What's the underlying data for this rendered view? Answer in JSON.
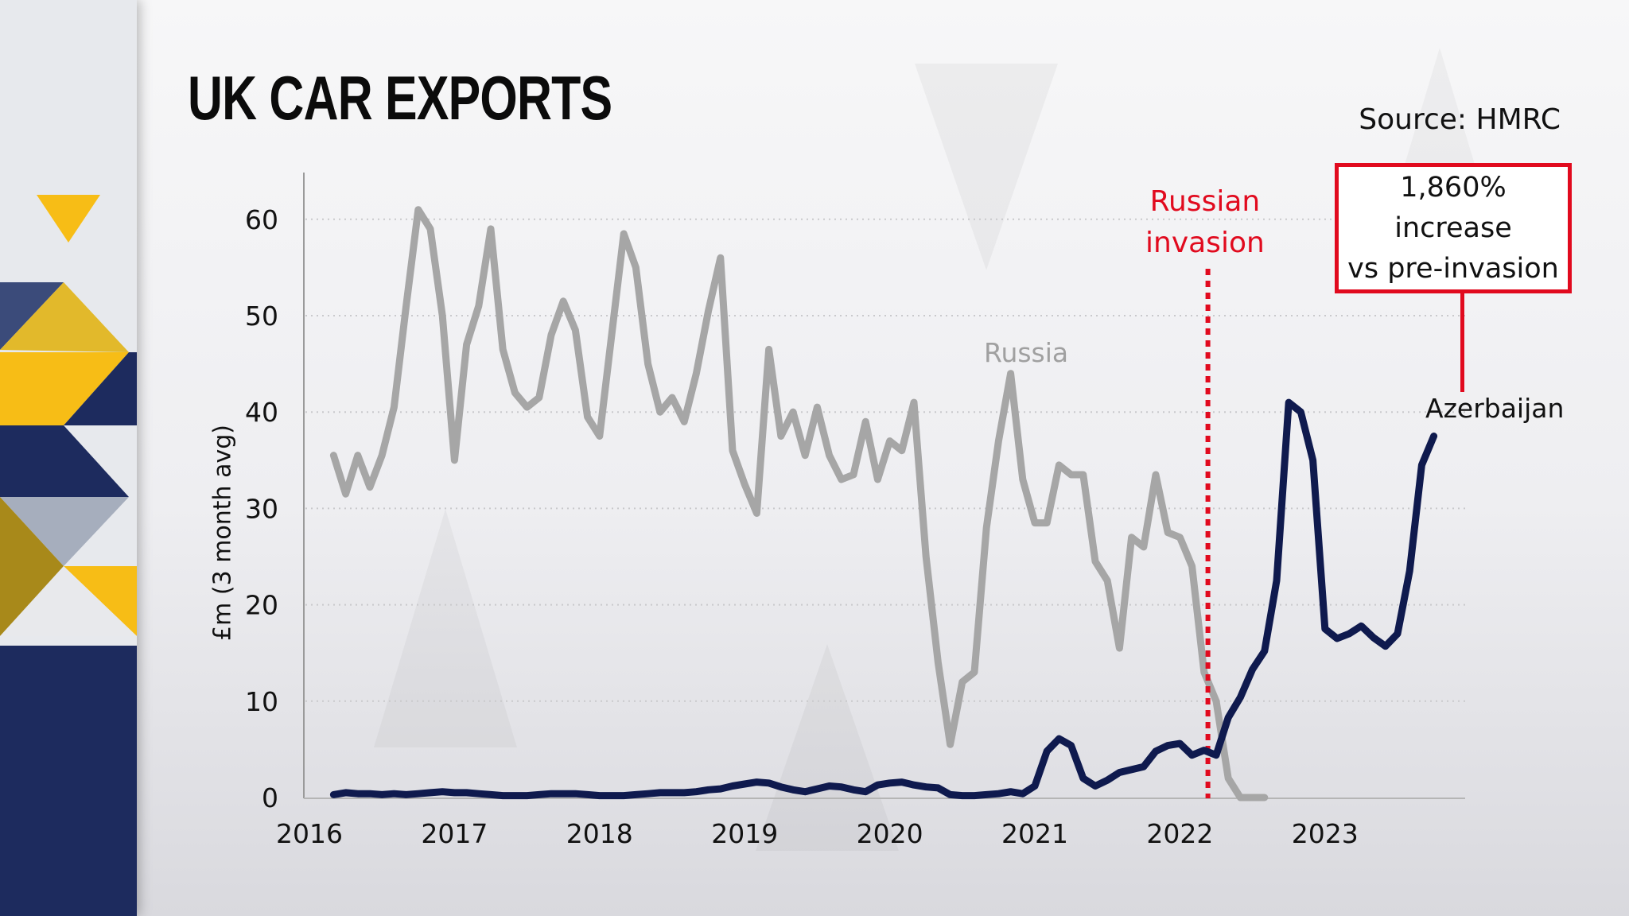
{
  "header": {
    "title": "UK CAR EXPORTS",
    "source": "Source: HMRC"
  },
  "annotations": {
    "invasion_line1": "Russian",
    "invasion_line2": "invasion",
    "callout_line1": "1,860%",
    "callout_line2": "increase",
    "callout_line3": "vs pre-invasion",
    "russia_label": "Russia",
    "azerbaijan_label": "Azerbaijan"
  },
  "colors": {
    "russia": "#a6a6a6",
    "azerbaijan": "#0f1a4e",
    "invasion": "#e10a1e",
    "accent_yellow": "#f7bd16",
    "accent_navy": "#1d2b5e"
  },
  "chart_data": {
    "type": "line",
    "title": "UK CAR EXPORTS",
    "subtitle": "Source: HMRC",
    "xlabel": "",
    "ylabel": "£m (3 month avg)",
    "ylim": [
      0,
      65
    ],
    "yticks": [
      0,
      10,
      20,
      30,
      40,
      50,
      60
    ],
    "xticks": [
      "2016",
      "2017",
      "2018",
      "2019",
      "2020",
      "2021",
      "2022",
      "2023"
    ],
    "grid": "horizontal dotted",
    "legend": "inline labels",
    "x_start": "2016-03",
    "x_step": "month",
    "event_marker": {
      "label": "Russian invasion",
      "x": "2022-02"
    },
    "callout": {
      "text": "1,860% increase vs pre-invasion",
      "series": "Azerbaijan"
    },
    "series": [
      {
        "name": "Russia",
        "values": [
          35.5,
          31.5,
          35.5,
          32.2,
          35.5,
          40.5,
          51,
          61,
          59,
          50,
          35,
          47,
          51,
          59,
          46.5,
          42,
          40.5,
          41.5,
          48,
          51.5,
          48.5,
          39.5,
          37.5,
          48,
          58.5,
          55,
          45,
          40,
          41.5,
          39,
          44,
          50.5,
          56,
          36,
          32.5,
          29.5,
          46.5,
          37.5,
          40,
          35.5,
          40.5,
          35.5,
          33,
          33.5,
          39,
          33,
          37,
          36,
          41,
          25,
          14,
          5.5,
          12,
          13,
          28,
          37,
          44,
          33,
          28.5,
          28.5,
          34.5,
          33.5,
          33.5,
          24.5,
          22.5,
          15.5,
          27,
          26,
          33.5,
          27.5,
          27,
          24,
          13,
          10,
          2,
          0,
          0,
          0
        ]
      },
      {
        "name": "Azerbaijan",
        "values": [
          0.3,
          0.5,
          0.4,
          0.4,
          0.3,
          0.4,
          0.3,
          0.4,
          0.5,
          0.6,
          0.5,
          0.5,
          0.4,
          0.3,
          0.2,
          0.2,
          0.2,
          0.3,
          0.4,
          0.4,
          0.4,
          0.3,
          0.2,
          0.2,
          0.2,
          0.3,
          0.4,
          0.5,
          0.5,
          0.5,
          0.6,
          0.8,
          0.9,
          1.2,
          1.4,
          1.6,
          1.5,
          1.1,
          0.8,
          0.6,
          0.9,
          1.2,
          1.1,
          0.8,
          0.6,
          1.3,
          1.5,
          1.6,
          1.3,
          1.1,
          1.0,
          0.3,
          0.2,
          0.2,
          0.3,
          0.4,
          0.6,
          0.4,
          1.2,
          4.8,
          6.1,
          5.4,
          2.0,
          1.2,
          1.8,
          2.6,
          2.9,
          3.2,
          4.8,
          5.4,
          5.6,
          4.4,
          4.9,
          4.4,
          8.3,
          10.4,
          13.3,
          15.2,
          22.5,
          41,
          40,
          35,
          17.5,
          16.5,
          17,
          17.8,
          16.6,
          15.7,
          17,
          23.5,
          34.5,
          37.5
        ]
      }
    ]
  }
}
